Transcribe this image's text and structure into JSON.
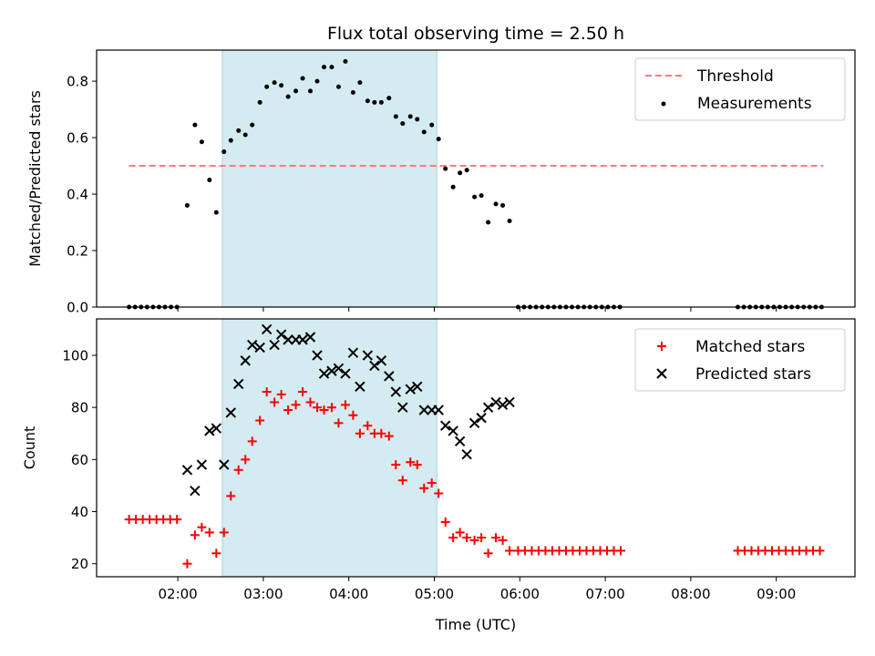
{
  "title": "Flux total observing time = 2.50 h",
  "colors": {
    "threshold": "#ff7b7b",
    "measurement": "#000000",
    "matched": "#ff0000",
    "predicted": "#000000",
    "observing_band": "#d4ebf1"
  },
  "chart_data": [
    {
      "type": "scatter",
      "ylabel": "Matched/Predicted stars",
      "xlabel": "",
      "xlim": [
        1.05,
        9.92
      ],
      "ylim": [
        0,
        0.91
      ],
      "yticks": [
        0.0,
        0.2,
        0.4,
        0.6,
        0.8
      ],
      "ytick_labels": [
        "0.0",
        "0.2",
        "0.4",
        "0.6",
        "0.8"
      ],
      "xticks": [
        2,
        3,
        4,
        5,
        6,
        7,
        8,
        9
      ],
      "observing_band": [
        2.52,
        5.03
      ],
      "legend": {
        "position": "top-right",
        "entries": [
          "Threshold",
          "Measurements"
        ]
      },
      "threshold": {
        "name": "Threshold",
        "x": [
          1.43,
          9.55
        ],
        "y": 0.5
      },
      "series": [
        {
          "name": "Measurements",
          "marker": "dot",
          "x": [
            1.43,
            1.5,
            1.57,
            1.64,
            1.71,
            1.78,
            1.85,
            1.92,
            1.99,
            2.11,
            2.2,
            2.28,
            2.37,
            2.45,
            2.54,
            2.62,
            2.71,
            2.79,
            2.87,
            2.96,
            3.04,
            3.13,
            3.21,
            3.29,
            3.38,
            3.46,
            3.55,
            3.63,
            3.71,
            3.8,
            3.88,
            3.96,
            4.05,
            4.13,
            4.22,
            4.3,
            4.38,
            4.47,
            4.55,
            4.63,
            4.72,
            4.8,
            4.88,
            4.97,
            5.05,
            5.13,
            5.22,
            5.3,
            5.38,
            5.47,
            5.55,
            5.63,
            5.72,
            5.8,
            5.88,
            5.98,
            6.05,
            6.12,
            6.19,
            6.26,
            6.33,
            6.4,
            6.47,
            6.54,
            6.61,
            6.68,
            6.75,
            6.82,
            6.89,
            6.96,
            7.03,
            7.1,
            7.17,
            8.55,
            8.62,
            8.69,
            8.76,
            8.83,
            8.9,
            8.97,
            9.04,
            9.11,
            9.18,
            9.25,
            9.32,
            9.39,
            9.46,
            9.53
          ],
          "y": [
            0,
            0,
            0,
            0,
            0,
            0,
            0,
            0,
            0,
            0.36,
            0.645,
            0.585,
            0.45,
            0.335,
            0.55,
            0.59,
            0.625,
            0.61,
            0.645,
            0.725,
            0.78,
            0.795,
            0.785,
            0.745,
            0.765,
            0.81,
            0.765,
            0.8,
            0.85,
            0.85,
            0.78,
            0.87,
            0.76,
            0.795,
            0.73,
            0.725,
            0.725,
            0.74,
            0.675,
            0.65,
            0.675,
            0.665,
            0.62,
            0.645,
            0.595,
            0.49,
            0.425,
            0.475,
            0.485,
            0.39,
            0.395,
            0.3,
            0.365,
            0.36,
            0.305,
            0,
            0,
            0,
            0,
            0,
            0,
            0,
            0,
            0,
            0,
            0,
            0,
            0,
            0,
            0,
            0,
            0,
            0,
            0,
            0,
            0,
            0,
            0,
            0,
            0,
            0,
            0,
            0,
            0,
            0,
            0,
            0,
            0
          ]
        }
      ]
    },
    {
      "type": "scatter",
      "ylabel": "Count",
      "xlabel": "Time (UTC)",
      "xlim": [
        1.05,
        9.92
      ],
      "ylim": [
        15,
        114
      ],
      "yticks": [
        20,
        40,
        60,
        80,
        100
      ],
      "ytick_labels": [
        "20",
        "40",
        "60",
        "80",
        "100"
      ],
      "xticks": [
        2,
        3,
        4,
        5,
        6,
        7,
        8,
        9
      ],
      "xtick_labels": [
        "02:00",
        "03:00",
        "04:00",
        "05:00",
        "06:00",
        "07:00",
        "08:00",
        "09:00"
      ],
      "observing_band": [
        2.52,
        5.03
      ],
      "legend": {
        "position": "top-right",
        "entries": [
          "Matched stars",
          "Predicted stars"
        ]
      },
      "series": [
        {
          "name": "Matched stars",
          "marker": "plus",
          "x": [
            1.43,
            1.51,
            1.59,
            1.67,
            1.75,
            1.83,
            1.91,
            1.99,
            2.11,
            2.2,
            2.28,
            2.37,
            2.45,
            2.54,
            2.62,
            2.71,
            2.79,
            2.87,
            2.96,
            3.04,
            3.13,
            3.21,
            3.29,
            3.38,
            3.46,
            3.55,
            3.63,
            3.71,
            3.8,
            3.88,
            3.96,
            4.05,
            4.13,
            4.22,
            4.3,
            4.38,
            4.47,
            4.55,
            4.63,
            4.72,
            4.8,
            4.88,
            4.97,
            5.05,
            5.13,
            5.22,
            5.3,
            5.38,
            5.47,
            5.55,
            5.63,
            5.72,
            5.8,
            5.88,
            5.98,
            6.06,
            6.14,
            6.22,
            6.3,
            6.38,
            6.46,
            6.54,
            6.62,
            6.7,
            6.78,
            6.86,
            6.94,
            7.02,
            7.1,
            7.18,
            8.55,
            8.63,
            8.71,
            8.79,
            8.87,
            8.95,
            9.03,
            9.11,
            9.19,
            9.27,
            9.35,
            9.43,
            9.51
          ],
          "y": [
            37,
            37,
            37,
            37,
            37,
            37,
            37,
            37,
            20,
            31,
            34,
            32,
            24,
            32,
            46,
            56,
            60,
            67,
            75,
            86,
            82,
            85,
            79,
            81,
            86,
            82,
            80,
            79,
            80,
            74,
            81,
            77,
            70,
            73,
            70,
            70,
            69,
            58,
            52,
            59,
            58,
            49,
            51,
            47,
            36,
            30,
            32,
            30,
            29,
            30,
            24,
            30,
            29,
            25,
            25,
            25,
            25,
            25,
            25,
            25,
            25,
            25,
            25,
            25,
            25,
            25,
            25,
            25,
            25,
            25,
            25,
            25,
            25,
            25,
            25,
            25,
            25,
            25,
            25,
            25,
            25,
            25,
            25
          ]
        },
        {
          "name": "Predicted stars",
          "marker": "x",
          "x": [
            2.11,
            2.2,
            2.28,
            2.37,
            2.45,
            2.54,
            2.62,
            2.71,
            2.79,
            2.87,
            2.96,
            3.04,
            3.13,
            3.21,
            3.29,
            3.38,
            3.46,
            3.55,
            3.63,
            3.71,
            3.8,
            3.88,
            3.96,
            4.05,
            4.13,
            4.22,
            4.3,
            4.38,
            4.47,
            4.55,
            4.63,
            4.72,
            4.8,
            4.88,
            4.97,
            5.05,
            5.13,
            5.22,
            5.3,
            5.38,
            5.47,
            5.55,
            5.63,
            5.72,
            5.8,
            5.88
          ],
          "y": [
            56,
            48,
            58,
            71,
            72,
            58,
            78,
            89,
            98,
            104,
            103,
            110,
            104,
            108,
            106,
            106,
            106,
            107,
            100,
            93,
            94,
            95,
            93,
            101,
            88,
            100,
            96,
            98,
            92,
            86,
            80,
            87,
            88,
            79,
            79,
            79,
            73,
            71,
            67,
            62,
            74,
            76,
            80,
            82,
            81,
            82
          ]
        }
      ]
    }
  ]
}
